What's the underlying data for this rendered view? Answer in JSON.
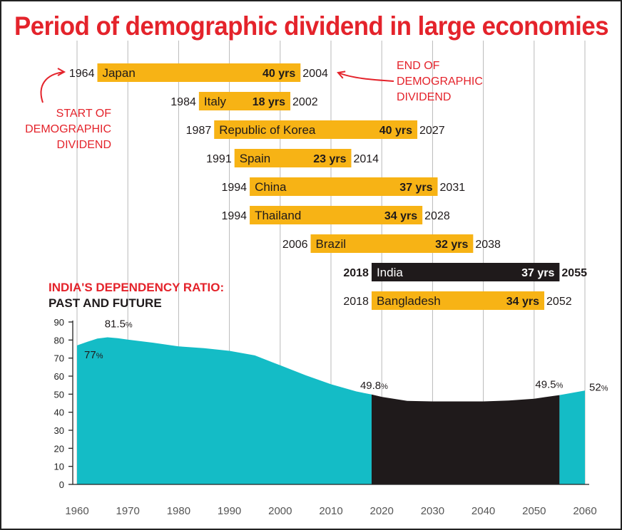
{
  "title": "Period of demographic dividend in large economies",
  "colors": {
    "title": "#e4232b",
    "bar": "#f7b315",
    "bar_highlight": "#1f1a1b",
    "area": "#14bcc6",
    "area_highlight": "#1f1a1b",
    "annotation": "#e4232b",
    "gridline": "#b9b9b9"
  },
  "annotations": {
    "start": [
      "START OF",
      "DEMOGRAPHIC",
      "DIVIDEND"
    ],
    "end": [
      "END OF",
      "DEMOGRAPHIC",
      "DIVIDEND"
    ]
  },
  "chart_data": [
    {
      "type": "bar",
      "orientation": "horizontal-range",
      "x_range": [
        1960,
        2060
      ],
      "bars": [
        {
          "country": "Japan",
          "start": 1964,
          "end": 2004,
          "duration": "40 yrs",
          "highlight": false
        },
        {
          "country": "Italy",
          "start": 1984,
          "end": 2002,
          "duration": "18 yrs",
          "highlight": false
        },
        {
          "country": "Republic of Korea",
          "start": 1987,
          "end": 2027,
          "duration": "40 yrs",
          "highlight": false
        },
        {
          "country": "Spain",
          "start": 1991,
          "end": 2014,
          "duration": "23 yrs",
          "highlight": false
        },
        {
          "country": "China",
          "start": 1994,
          "end": 2031,
          "duration": "37 yrs",
          "highlight": false
        },
        {
          "country": "Thailand",
          "start": 1994,
          "end": 2028,
          "duration": "34 yrs",
          "highlight": false
        },
        {
          "country": "Brazil",
          "start": 2006,
          "end": 2038,
          "duration": "32 yrs",
          "highlight": false
        },
        {
          "country": "India",
          "start": 2018,
          "end": 2055,
          "duration": "37 yrs",
          "highlight": true
        },
        {
          "country": "Bangladesh",
          "start": 2018,
          "end": 2052,
          "duration": "34 yrs",
          "highlight": false
        }
      ]
    },
    {
      "type": "area",
      "title_line1": "INDIA'S DEPENDENCY RATIO:",
      "title_line2": "PAST AND FUTURE",
      "x_ticks": [
        1960,
        1970,
        1980,
        1990,
        2000,
        2010,
        2020,
        2030,
        2040,
        2050,
        2060
      ],
      "y_ticks": [
        0,
        10,
        20,
        30,
        40,
        50,
        60,
        70,
        80,
        90
      ],
      "xlim": [
        1960,
        2060
      ],
      "ylim": [
        0,
        90
      ],
      "grid": "vertical",
      "highlight_range": [
        2018,
        2055
      ],
      "series": [
        {
          "x": [
            1960,
            1962,
            1964,
            1966,
            1968,
            1970,
            1975,
            1980,
            1985,
            1990,
            1995,
            2000,
            2005,
            2010,
            2015,
            2018,
            2020,
            2025,
            2030,
            2035,
            2040,
            2045,
            2050,
            2055,
            2060
          ],
          "y": [
            77,
            79,
            80.8,
            81.5,
            81,
            80.2,
            78.5,
            76.5,
            75.5,
            74,
            71.5,
            66,
            60.5,
            55.5,
            51.5,
            49.8,
            48.5,
            46.3,
            46,
            46,
            46,
            46.5,
            47.5,
            49.5,
            52
          ]
        }
      ],
      "point_labels": [
        {
          "x": 1960,
          "y": 77,
          "value": "77",
          "unit": "%"
        },
        {
          "x": 1966,
          "y": 81.5,
          "value": "81.5",
          "unit": "%"
        },
        {
          "x": 2018,
          "y": 49.8,
          "value": "49.8",
          "unit": "%"
        },
        {
          "x": 2055,
          "y": 49.5,
          "value": "49.5",
          "unit": "%"
        },
        {
          "x": 2060,
          "y": 52,
          "value": "52",
          "unit": "%"
        }
      ]
    }
  ]
}
